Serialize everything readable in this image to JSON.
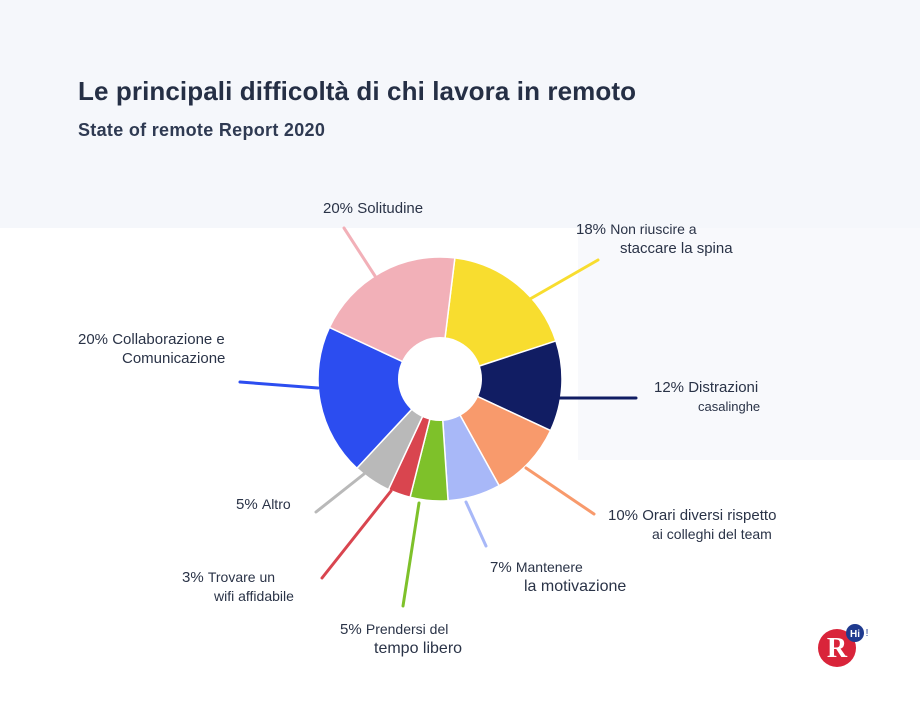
{
  "title": "Le principali difficoltà di chi lavora in remoto",
  "subtitle": "State of remote Report 2020",
  "chart_data": {
    "type": "pie",
    "donut": true,
    "title": "Le principali difficoltà di chi lavora in remoto",
    "subtitle": "State of remote Report 2020",
    "slices": [
      {
        "label": "Non riuscire a staccare la spina",
        "value": 18,
        "color": "#f8dd2f",
        "pct_text": "18%",
        "line1": "Non riuscire a",
        "line2": "staccare la spina"
      },
      {
        "label": "Distrazioni casalinghe",
        "value": 12,
        "color": "#111d63",
        "pct_text": "12%",
        "line1": "Distrazioni",
        "line2": "casalinghe"
      },
      {
        "label": "Orari diversi rispetto ai colleghi del team",
        "value": 10,
        "color": "#f89a6c",
        "pct_text": "10%",
        "line1": "Orari diversi rispetto",
        "line2": "ai colleghi del team"
      },
      {
        "label": "Mantenere la motivazione",
        "value": 7,
        "color": "#a8b8f8",
        "pct_text": "7%",
        "line1": "Mantenere",
        "line2": "la motivazione"
      },
      {
        "label": "Prendersi del tempo libero",
        "value": 5,
        "color": "#7ec12a",
        "pct_text": "5%",
        "line1": "Prendersi del",
        "line2": "tempo libero"
      },
      {
        "label": "Trovare un wifi affidabile",
        "value": 3,
        "color": "#d9454f",
        "pct_text": "3%",
        "line1": "Trovare un",
        "line2": "wifi affidabile"
      },
      {
        "label": "Altro",
        "value": 5,
        "color": "#b9b9b9",
        "pct_text": "5%",
        "line1": "Altro",
        "line2": ""
      },
      {
        "label": "Collaborazione e Comunicazione",
        "value": 20,
        "color": "#2c4df0",
        "pct_text": "20%",
        "line1": "Collaborazione e",
        "line2": "Comunicazione"
      },
      {
        "label": "Solitudine",
        "value": 20,
        "color": "#f2b0b8",
        "pct_text": "20%",
        "line1": "Solitudine",
        "line2": ""
      }
    ]
  },
  "logo": {
    "letter": "R",
    "badge": "Hi",
    "mark": "!"
  }
}
